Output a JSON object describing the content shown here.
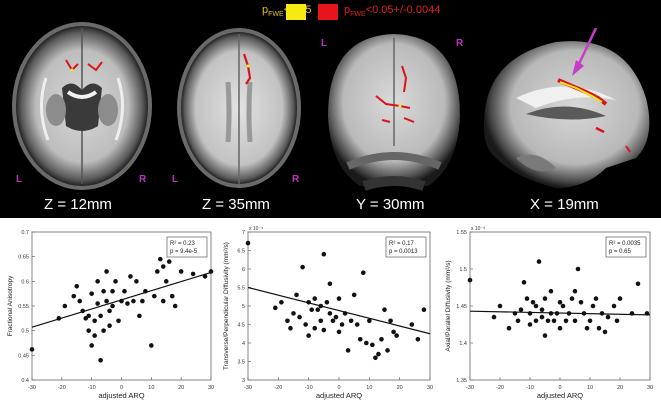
{
  "legend": {
    "items": [
      {
        "p": "p",
        "sub": "FWE",
        "threshold": "<0.05",
        "text_color": "#e0c020",
        "color": "#f7ea12"
      },
      {
        "p": "p",
        "sub": "FWE",
        "threshold": "<0.05+/-0.0044",
        "text_color": "#e02020",
        "color": "#e8141c"
      }
    ]
  },
  "brain_slices": [
    {
      "label": "Z = 12mm",
      "view": "axial",
      "left_marker": "L",
      "right_marker": "R"
    },
    {
      "label": "Z = 35mm",
      "view": "axial",
      "left_marker": "L",
      "right_marker": "R"
    },
    {
      "label": "Y = 30mm",
      "view": "coronal",
      "left_marker": "L",
      "right_marker": "R"
    },
    {
      "label": "X = 19mm",
      "view": "sagittal",
      "arrow_color": "#c93cc9"
    }
  ],
  "chart_data": [
    {
      "type": "scatter",
      "xlabel": "adjusted ARQ",
      "ylabel": "Fractional Anisotropy",
      "xlim": [
        -30,
        30
      ],
      "ylim": [
        0.4,
        0.7
      ],
      "xticks": [
        "-30",
        "-20",
        "-10",
        "0",
        "10",
        "20",
        "30"
      ],
      "yticks": [
        "0.4",
        "0.45",
        "0.5",
        "0.55",
        "0.6",
        "0.65",
        "0.7"
      ],
      "stats": [
        "R² = 0.23",
        "p = 9.4e-5"
      ],
      "fit": {
        "x": [
          -30,
          30
        ],
        "y": [
          0.507,
          0.618
        ]
      },
      "points": [
        [
          -30,
          0.462
        ],
        [
          -21,
          0.525
        ],
        [
          -19,
          0.55
        ],
        [
          -16,
          0.57
        ],
        [
          -15,
          0.59
        ],
        [
          -14,
          0.56
        ],
        [
          -13,
          0.54
        ],
        [
          -12,
          0.525
        ],
        [
          -11,
          0.53
        ],
        [
          -11,
          0.5
        ],
        [
          -10,
          0.575
        ],
        [
          -10,
          0.47
        ],
        [
          -9,
          0.52
        ],
        [
          -9,
          0.49
        ],
        [
          -8,
          0.555
        ],
        [
          -8,
          0.6
        ],
        [
          -7,
          0.53
        ],
        [
          -7,
          0.44
        ],
        [
          -6,
          0.58
        ],
        [
          -6,
          0.5
        ],
        [
          -5,
          0.56
        ],
        [
          -5,
          0.62
        ],
        [
          -4,
          0.54
        ],
        [
          -4,
          0.51
        ],
        [
          -3,
          0.58
        ],
        [
          -3,
          0.55
        ],
        [
          -2,
          0.6
        ],
        [
          -1,
          0.52
        ],
        [
          0,
          0.56
        ],
        [
          1,
          0.58
        ],
        [
          2,
          0.555
        ],
        [
          3,
          0.61
        ],
        [
          4,
          0.56
        ],
        [
          5,
          0.6
        ],
        [
          6,
          0.53
        ],
        [
          7,
          0.56
        ],
        [
          8,
          0.58
        ],
        [
          10,
          0.47
        ],
        [
          11,
          0.57
        ],
        [
          12,
          0.62
        ],
        [
          13,
          0.645
        ],
        [
          14,
          0.63
        ],
        [
          14,
          0.56
        ],
        [
          15,
          0.6
        ],
        [
          16,
          0.64
        ],
        [
          17,
          0.57
        ],
        [
          18,
          0.55
        ],
        [
          20,
          0.62
        ],
        [
          24,
          0.615
        ],
        [
          28,
          0.61
        ],
        [
          30,
          0.62
        ]
      ]
    },
    {
      "type": "scatter",
      "xlabel": "adjusted ARQ",
      "ylabel": "Transverse/Perpendicular Diffusivity (mm²/s)",
      "y_multiplier": "x 10⁻⁴",
      "xlim": [
        -30,
        30
      ],
      "ylim": [
        3,
        7
      ],
      "xticks": [
        "-30",
        "-20",
        "-10",
        "0",
        "10",
        "20",
        "30"
      ],
      "yticks": [
        "3",
        "3.5",
        "4",
        "4.5",
        "5",
        "5.5",
        "6",
        "6.5",
        "7"
      ],
      "stats": [
        "R² = 0.17",
        "p = 0.0013"
      ],
      "fit": {
        "x": [
          -30,
          30
        ],
        "y": [
          5.5,
          4.25
        ]
      },
      "points": [
        [
          -30,
          6.7
        ],
        [
          -21,
          4.95
        ],
        [
          -19,
          5.1
        ],
        [
          -17,
          4.6
        ],
        [
          -16,
          4.4
        ],
        [
          -15,
          4.8
        ],
        [
          -14,
          5.3
        ],
        [
          -13,
          4.7
        ],
        [
          -12,
          6.05
        ],
        [
          -11,
          4.5
        ],
        [
          -10,
          5.1
        ],
        [
          -10,
          4.2
        ],
        [
          -9,
          4.9
        ],
        [
          -8,
          4.4
        ],
        [
          -8,
          5.2
        ],
        [
          -7,
          4.9
        ],
        [
          -6,
          5.0
        ],
        [
          -6,
          4.6
        ],
        [
          -5,
          4.35
        ],
        [
          -5,
          6.4
        ],
        [
          -4,
          5.1
        ],
        [
          -3,
          4.8
        ],
        [
          -3,
          5.6
        ],
        [
          -2,
          4.6
        ],
        [
          -1,
          4.7
        ],
        [
          0,
          5.2
        ],
        [
          0,
          4.3
        ],
        [
          1,
          4.5
        ],
        [
          2,
          4.8
        ],
        [
          3,
          3.8
        ],
        [
          4,
          4.6
        ],
        [
          5,
          5.3
        ],
        [
          6,
          4.5
        ],
        [
          7,
          4.1
        ],
        [
          8,
          5.9
        ],
        [
          9,
          4.0
        ],
        [
          10,
          4.6
        ],
        [
          11,
          3.95
        ],
        [
          12,
          3.6
        ],
        [
          13,
          3.7
        ],
        [
          14,
          4.1
        ],
        [
          15,
          4.9
        ],
        [
          16,
          3.8
        ],
        [
          17,
          4.6
        ],
        [
          18,
          4.3
        ],
        [
          19,
          4.2
        ],
        [
          24,
          4.5
        ],
        [
          26,
          4.1
        ],
        [
          28,
          4.9
        ]
      ]
    },
    {
      "type": "scatter",
      "xlabel": "adjusted ARQ",
      "ylabel": "Axial/Parallel Diffusivity (mm²/s)",
      "y_multiplier": "x 10⁻³",
      "xlim": [
        -30,
        30
      ],
      "ylim": [
        1.35,
        1.55
      ],
      "xticks": [
        "-30",
        "-20",
        "-10",
        "0",
        "10",
        "20",
        "30"
      ],
      "yticks": [
        "1.35",
        "1.4",
        "1.45",
        "1.5",
        "1.55"
      ],
      "stats": [
        "R² = 0.0035",
        "p = 0.65"
      ],
      "fit": {
        "x": [
          -30,
          30
        ],
        "y": [
          1.443,
          1.438
        ]
      },
      "points": [
        [
          -30,
          1.485
        ],
        [
          -22,
          1.435
        ],
        [
          -20,
          1.45
        ],
        [
          -17,
          1.42
        ],
        [
          -15,
          1.44
        ],
        [
          -14,
          1.43
        ],
        [
          -13,
          1.445
        ],
        [
          -12,
          1.482
        ],
        [
          -11,
          1.46
        ],
        [
          -10,
          1.425
        ],
        [
          -10,
          1.44
        ],
        [
          -9,
          1.455
        ],
        [
          -8,
          1.45
        ],
        [
          -8,
          1.43
        ],
        [
          -7,
          1.51
        ],
        [
          -6,
          1.445
        ],
        [
          -6,
          1.435
        ],
        [
          -5,
          1.46
        ],
        [
          -5,
          1.41
        ],
        [
          -4,
          1.43
        ],
        [
          -3,
          1.44
        ],
        [
          -3,
          1.47
        ],
        [
          -2,
          1.43
        ],
        [
          -1,
          1.44
        ],
        [
          0,
          1.455
        ],
        [
          0,
          1.42
        ],
        [
          1,
          1.45
        ],
        [
          2,
          1.43
        ],
        [
          3,
          1.44
        ],
        [
          4,
          1.46
        ],
        [
          5,
          1.47
        ],
        [
          5,
          1.43
        ],
        [
          6,
          1.5
        ],
        [
          7,
          1.455
        ],
        [
          8,
          1.44
        ],
        [
          9,
          1.42
        ],
        [
          10,
          1.43
        ],
        [
          11,
          1.45
        ],
        [
          12,
          1.46
        ],
        [
          13,
          1.42
        ],
        [
          14,
          1.44
        ],
        [
          15,
          1.415
        ],
        [
          16,
          1.435
        ],
        [
          18,
          1.45
        ],
        [
          19,
          1.43
        ],
        [
          20,
          1.46
        ],
        [
          24,
          1.44
        ],
        [
          26,
          1.48
        ],
        [
          29,
          1.44
        ]
      ]
    }
  ]
}
